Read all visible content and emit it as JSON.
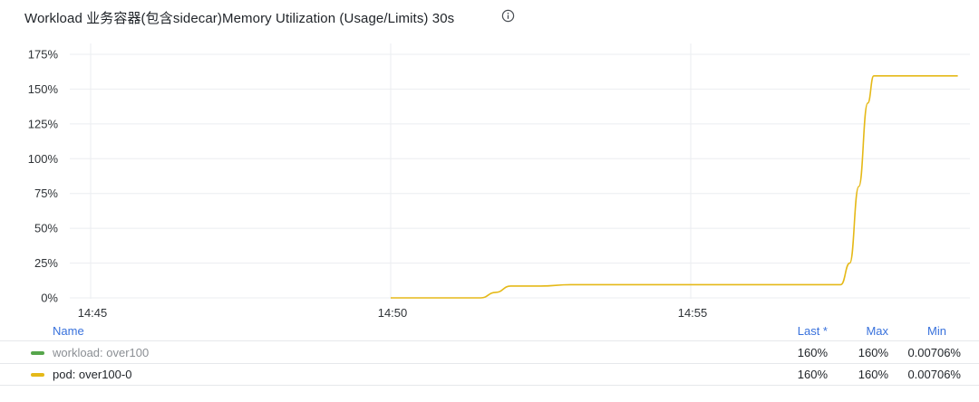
{
  "panel": {
    "title": "Workload 业务容器(包含sidecar)Memory Utilization (Usage/Limits) 30s",
    "info_icon": "info-circle-icon"
  },
  "chart_data": {
    "type": "line",
    "x_ticks": [
      "14:45",
      "14:50",
      "14:55"
    ],
    "x_tick_minutes": [
      0,
      5,
      10
    ],
    "x_unit": "minutes since 14:45",
    "xlim": [
      -0.25,
      14.45
    ],
    "y_ticks": [
      "0%",
      "25%",
      "50%",
      "75%",
      "100%",
      "125%",
      "150%",
      "175%"
    ],
    "y_tick_values": [
      0,
      25,
      50,
      75,
      100,
      125,
      150,
      175
    ],
    "ylim": [
      0,
      175
    ],
    "grid": true,
    "series": [
      {
        "name": "workload: over100",
        "color": "#56a64b",
        "x": [],
        "y": []
      },
      {
        "name": "pod: over100-0",
        "color": "#e5b918",
        "x": [
          5.0,
          6.5,
          6.75,
          7.0,
          7.5,
          8.0,
          9.0,
          10.0,
          11.0,
          12.0,
          12.5,
          12.65,
          12.8,
          12.95,
          13.05,
          14.45
        ],
        "y": [
          0,
          0,
          4,
          8.5,
          8.5,
          9.5,
          9.5,
          9.5,
          9.5,
          9.5,
          9.5,
          25,
          80,
          140,
          159.5,
          159.5
        ]
      }
    ]
  },
  "legend": {
    "headers": {
      "name": "Name",
      "last": "Last *",
      "max": "Max",
      "min": "Min"
    },
    "rows": [
      {
        "name": "workload: over100",
        "last": "160%",
        "max": "160%",
        "min": "0.00706%",
        "color": "#56a64b"
      },
      {
        "name": "pod: over100-0",
        "last": "160%",
        "max": "160%",
        "min": "0.00706%",
        "color": "#e5b918"
      }
    ]
  }
}
